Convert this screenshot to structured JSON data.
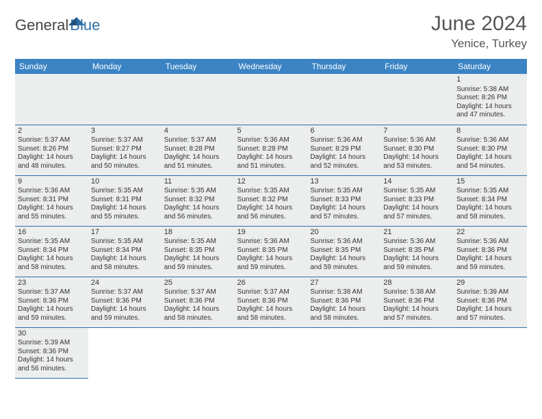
{
  "logo": {
    "text1": "General",
    "text2": "Blue"
  },
  "title": "June 2024",
  "location": "Yenice, Turkey",
  "dayHeaders": [
    "Sunday",
    "Monday",
    "Tuesday",
    "Wednesday",
    "Thursday",
    "Friday",
    "Saturday"
  ],
  "colors": {
    "headerBg": "#3b84c4",
    "headerText": "#ffffff",
    "cellBg": "#eceded",
    "border": "#2f6fa8"
  },
  "weeks": [
    [
      null,
      null,
      null,
      null,
      null,
      null,
      {
        "day": "1",
        "sunrise": "Sunrise: 5:38 AM",
        "sunset": "Sunset: 8:26 PM",
        "daylight1": "Daylight: 14 hours",
        "daylight2": "and 47 minutes."
      }
    ],
    [
      {
        "day": "2",
        "sunrise": "Sunrise: 5:37 AM",
        "sunset": "Sunset: 8:26 PM",
        "daylight1": "Daylight: 14 hours",
        "daylight2": "and 48 minutes."
      },
      {
        "day": "3",
        "sunrise": "Sunrise: 5:37 AM",
        "sunset": "Sunset: 8:27 PM",
        "daylight1": "Daylight: 14 hours",
        "daylight2": "and 50 minutes."
      },
      {
        "day": "4",
        "sunrise": "Sunrise: 5:37 AM",
        "sunset": "Sunset: 8:28 PM",
        "daylight1": "Daylight: 14 hours",
        "daylight2": "and 51 minutes."
      },
      {
        "day": "5",
        "sunrise": "Sunrise: 5:36 AM",
        "sunset": "Sunset: 8:28 PM",
        "daylight1": "Daylight: 14 hours",
        "daylight2": "and 51 minutes."
      },
      {
        "day": "6",
        "sunrise": "Sunrise: 5:36 AM",
        "sunset": "Sunset: 8:29 PM",
        "daylight1": "Daylight: 14 hours",
        "daylight2": "and 52 minutes."
      },
      {
        "day": "7",
        "sunrise": "Sunrise: 5:36 AM",
        "sunset": "Sunset: 8:30 PM",
        "daylight1": "Daylight: 14 hours",
        "daylight2": "and 53 minutes."
      },
      {
        "day": "8",
        "sunrise": "Sunrise: 5:36 AM",
        "sunset": "Sunset: 8:30 PM",
        "daylight1": "Daylight: 14 hours",
        "daylight2": "and 54 minutes."
      }
    ],
    [
      {
        "day": "9",
        "sunrise": "Sunrise: 5:36 AM",
        "sunset": "Sunset: 8:31 PM",
        "daylight1": "Daylight: 14 hours",
        "daylight2": "and 55 minutes."
      },
      {
        "day": "10",
        "sunrise": "Sunrise: 5:35 AM",
        "sunset": "Sunset: 8:31 PM",
        "daylight1": "Daylight: 14 hours",
        "daylight2": "and 55 minutes."
      },
      {
        "day": "11",
        "sunrise": "Sunrise: 5:35 AM",
        "sunset": "Sunset: 8:32 PM",
        "daylight1": "Daylight: 14 hours",
        "daylight2": "and 56 minutes."
      },
      {
        "day": "12",
        "sunrise": "Sunrise: 5:35 AM",
        "sunset": "Sunset: 8:32 PM",
        "daylight1": "Daylight: 14 hours",
        "daylight2": "and 56 minutes."
      },
      {
        "day": "13",
        "sunrise": "Sunrise: 5:35 AM",
        "sunset": "Sunset: 8:33 PM",
        "daylight1": "Daylight: 14 hours",
        "daylight2": "and 57 minutes."
      },
      {
        "day": "14",
        "sunrise": "Sunrise: 5:35 AM",
        "sunset": "Sunset: 8:33 PM",
        "daylight1": "Daylight: 14 hours",
        "daylight2": "and 57 minutes."
      },
      {
        "day": "15",
        "sunrise": "Sunrise: 5:35 AM",
        "sunset": "Sunset: 8:34 PM",
        "daylight1": "Daylight: 14 hours",
        "daylight2": "and 58 minutes."
      }
    ],
    [
      {
        "day": "16",
        "sunrise": "Sunrise: 5:35 AM",
        "sunset": "Sunset: 8:34 PM",
        "daylight1": "Daylight: 14 hours",
        "daylight2": "and 58 minutes."
      },
      {
        "day": "17",
        "sunrise": "Sunrise: 5:35 AM",
        "sunset": "Sunset: 8:34 PM",
        "daylight1": "Daylight: 14 hours",
        "daylight2": "and 58 minutes."
      },
      {
        "day": "18",
        "sunrise": "Sunrise: 5:35 AM",
        "sunset": "Sunset: 8:35 PM",
        "daylight1": "Daylight: 14 hours",
        "daylight2": "and 59 minutes."
      },
      {
        "day": "19",
        "sunrise": "Sunrise: 5:36 AM",
        "sunset": "Sunset: 8:35 PM",
        "daylight1": "Daylight: 14 hours",
        "daylight2": "and 59 minutes."
      },
      {
        "day": "20",
        "sunrise": "Sunrise: 5:36 AM",
        "sunset": "Sunset: 8:35 PM",
        "daylight1": "Daylight: 14 hours",
        "daylight2": "and 59 minutes."
      },
      {
        "day": "21",
        "sunrise": "Sunrise: 5:36 AM",
        "sunset": "Sunset: 8:35 PM",
        "daylight1": "Daylight: 14 hours",
        "daylight2": "and 59 minutes."
      },
      {
        "day": "22",
        "sunrise": "Sunrise: 5:36 AM",
        "sunset": "Sunset: 8:36 PM",
        "daylight1": "Daylight: 14 hours",
        "daylight2": "and 59 minutes."
      }
    ],
    [
      {
        "day": "23",
        "sunrise": "Sunrise: 5:37 AM",
        "sunset": "Sunset: 8:36 PM",
        "daylight1": "Daylight: 14 hours",
        "daylight2": "and 59 minutes."
      },
      {
        "day": "24",
        "sunrise": "Sunrise: 5:37 AM",
        "sunset": "Sunset: 8:36 PM",
        "daylight1": "Daylight: 14 hours",
        "daylight2": "and 59 minutes."
      },
      {
        "day": "25",
        "sunrise": "Sunrise: 5:37 AM",
        "sunset": "Sunset: 8:36 PM",
        "daylight1": "Daylight: 14 hours",
        "daylight2": "and 58 minutes."
      },
      {
        "day": "26",
        "sunrise": "Sunrise: 5:37 AM",
        "sunset": "Sunset: 8:36 PM",
        "daylight1": "Daylight: 14 hours",
        "daylight2": "and 58 minutes."
      },
      {
        "day": "27",
        "sunrise": "Sunrise: 5:38 AM",
        "sunset": "Sunset: 8:36 PM",
        "daylight1": "Daylight: 14 hours",
        "daylight2": "and 58 minutes."
      },
      {
        "day": "28",
        "sunrise": "Sunrise: 5:38 AM",
        "sunset": "Sunset: 8:36 PM",
        "daylight1": "Daylight: 14 hours",
        "daylight2": "and 57 minutes."
      },
      {
        "day": "29",
        "sunrise": "Sunrise: 5:39 AM",
        "sunset": "Sunset: 8:36 PM",
        "daylight1": "Daylight: 14 hours",
        "daylight2": "and 57 minutes."
      }
    ],
    [
      {
        "day": "30",
        "sunrise": "Sunrise: 5:39 AM",
        "sunset": "Sunset: 8:36 PM",
        "daylight1": "Daylight: 14 hours",
        "daylight2": "and 56 minutes."
      },
      null,
      null,
      null,
      null,
      null,
      null
    ]
  ]
}
